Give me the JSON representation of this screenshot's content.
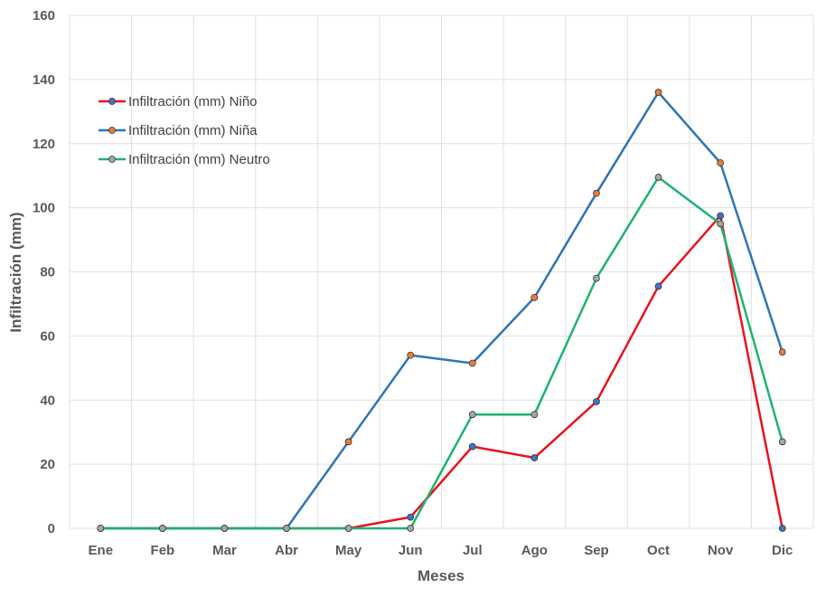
{
  "chart_data": {
    "type": "line",
    "xlabel": "Meses",
    "ylabel": "Infiltración (mm)",
    "categories": [
      "Ene",
      "Feb",
      "Mar",
      "Abr",
      "May",
      "Jun",
      "Jul",
      "Ago",
      "Sep",
      "Oct",
      "Nov",
      "Dic"
    ],
    "ylim": [
      0,
      160
    ],
    "yticks": [
      "0",
      "20",
      "40",
      "60",
      "80",
      "100",
      "120",
      "140",
      "160"
    ],
    "grid": true,
    "legend_position": "top-left",
    "series": [
      {
        "name": "Infiltración (mm) Niño",
        "color": "#e8141c",
        "marker_color": "#4472c4",
        "values": [
          0,
          0,
          0,
          0,
          0,
          3.5,
          25.5,
          22,
          39.5,
          75.5,
          97.5,
          0
        ]
      },
      {
        "name": "Infiltración (mm) Niña",
        "color": "#2e75b6",
        "marker_color": "#ed7d31",
        "values": [
          0,
          0,
          0,
          0,
          27,
          54,
          51.5,
          72,
          104.5,
          136,
          114,
          55
        ]
      },
      {
        "name": "Infiltración (mm) Neutro",
        "color": "#1db370",
        "marker_color": "#a5a5a5",
        "values": [
          0,
          0,
          0,
          0,
          0,
          0,
          35.5,
          35.5,
          78,
          109.5,
          95,
          27
        ]
      }
    ]
  }
}
